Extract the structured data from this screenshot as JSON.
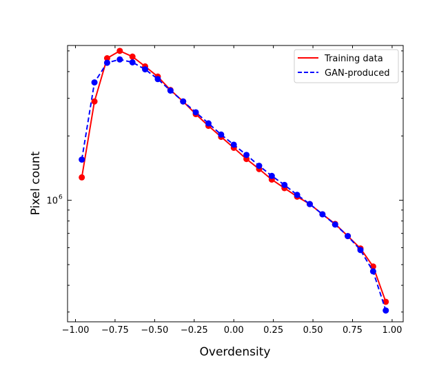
{
  "chart_data": {
    "type": "line",
    "title": "",
    "xlabel": "Overdensity",
    "ylabel": "Pixel count",
    "x_scale": "linear",
    "y_scale": "log",
    "xlim": [
      -1.05,
      1.07
    ],
    "ylim": [
      270000,
      5300000
    ],
    "x_ticks": [
      -1.0,
      -0.75,
      -0.5,
      -0.25,
      0.0,
      0.25,
      0.5,
      0.75,
      1.0
    ],
    "x_tick_labels": [
      "−1.00",
      "−0.75",
      "−0.50",
      "−0.25",
      "0.00",
      "0.25",
      "0.50",
      "0.75",
      "1.00"
    ],
    "y_major_ticks": [
      1000000
    ],
    "y_major_tick_labels": [
      {
        "base": "10",
        "exp": "6"
      }
    ],
    "y_minor_ticks": [
      300000,
      400000,
      500000,
      600000,
      700000,
      800000,
      900000,
      2000000,
      3000000,
      4000000,
      5000000
    ],
    "legend_position": "top-right",
    "x": [
      -0.96,
      -0.88,
      -0.8,
      -0.72,
      -0.64,
      -0.56,
      -0.48,
      -0.4,
      -0.32,
      -0.24,
      -0.16,
      -0.08,
      0.0,
      0.08,
      0.16,
      0.24,
      0.32,
      0.4,
      0.48,
      0.56,
      0.64,
      0.72,
      0.8,
      0.88,
      0.96
    ],
    "series": [
      {
        "name": "Training data",
        "color": "#ff0000",
        "line_style": "solid",
        "values": [
          1280000,
          2900000,
          4620000,
          5000000,
          4700000,
          4230000,
          3790000,
          3280000,
          2900000,
          2530000,
          2230000,
          1980000,
          1760000,
          1560000,
          1400000,
          1250000,
          1140000,
          1040000,
          960000,
          860000,
          775000,
          680000,
          595000,
          490000,
          335000
        ]
      },
      {
        "name": "GAN-produced",
        "color": "#0000ff",
        "line_style": "dashed",
        "values": [
          1550000,
          3560000,
          4400000,
          4560000,
          4420000,
          4100000,
          3690000,
          3260000,
          2900000,
          2580000,
          2290000,
          2030000,
          1820000,
          1630000,
          1450000,
          1300000,
          1180000,
          1060000,
          960000,
          860000,
          770000,
          680000,
          585000,
          465000,
          305000
        ]
      }
    ]
  }
}
